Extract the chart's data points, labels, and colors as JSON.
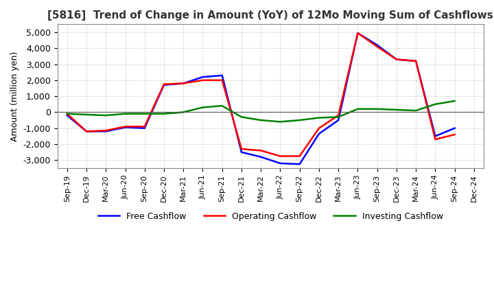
{
  "title": "[5816]  Trend of Change in Amount (YoY) of 12Mo Moving Sum of Cashflows",
  "ylabel": "Amount (million yen)",
  "ylim": [
    -3500,
    5500
  ],
  "yticks": [
    -3000,
    -2000,
    -1000,
    0,
    1000,
    2000,
    3000,
    4000,
    5000
  ],
  "x_labels": [
    "Sep-19",
    "Dec-19",
    "Mar-20",
    "Jun-20",
    "Sep-20",
    "Dec-20",
    "Mar-21",
    "Jun-21",
    "Sep-21",
    "Dec-21",
    "Mar-22",
    "Jun-22",
    "Sep-22",
    "Dec-22",
    "Mar-23",
    "Jun-23",
    "Sep-23",
    "Dec-23",
    "Mar-24",
    "Jun-24",
    "Sep-24",
    "Dec-24"
  ],
  "operating": [
    -100,
    -1200,
    -1150,
    -900,
    -900,
    1750,
    1800,
    2000,
    2000,
    -2300,
    -2400,
    -2750,
    -2750,
    -1000,
    -200,
    4950,
    4100,
    3300,
    3200,
    -1700,
    -1400,
    null
  ],
  "investing": [
    -100,
    -150,
    -200,
    -100,
    -100,
    -100,
    0,
    300,
    400,
    -300,
    -500,
    -600,
    -500,
    -350,
    -300,
    200,
    200,
    150,
    100,
    500,
    700,
    null
  ],
  "free": [
    -200,
    -1200,
    -1200,
    -950,
    -1000,
    1700,
    1800,
    2200,
    2300,
    -2500,
    -2800,
    -3200,
    -3250,
    -1350,
    -500,
    4950,
    4200,
    3300,
    3200,
    -1500,
    -1000,
    null
  ],
  "line_colors": {
    "operating": "#FF0000",
    "investing": "#008000",
    "free": "#0000FF"
  },
  "background_color": "#FFFFFF",
  "grid_color": "#888888",
  "title_color": "#333333",
  "legend_labels": {
    "operating": "Operating Cashflow",
    "investing": "Investing Cashflow",
    "free": "Free Cashflow"
  }
}
